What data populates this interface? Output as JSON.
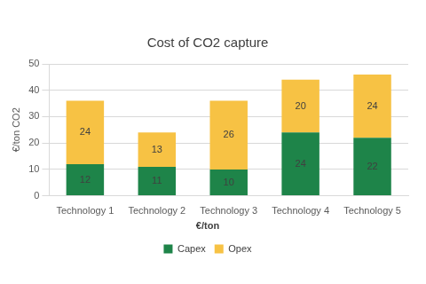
{
  "chart_data": {
    "type": "bar",
    "title": "Cost of CO2 capture",
    "y_label": "€/ton CO2",
    "legend_title": "€/ton",
    "categories": [
      "Technology 1",
      "Technology 2",
      "Technology 3",
      "Technology 4",
      "Technology 5"
    ],
    "series": [
      {
        "name": "Capex",
        "color": "#1e8449",
        "values": [
          12,
          11,
          10,
          24,
          22
        ]
      },
      {
        "name": "Opex",
        "color": "#f7c244",
        "values": [
          24,
          13,
          26,
          20,
          24
        ]
      }
    ],
    "stacked": true,
    "data_labels": true,
    "ylim": [
      0,
      50
    ],
    "yticks": [
      0,
      10,
      20,
      30,
      40,
      50
    ],
    "grid": true,
    "legend": "bottom"
  }
}
